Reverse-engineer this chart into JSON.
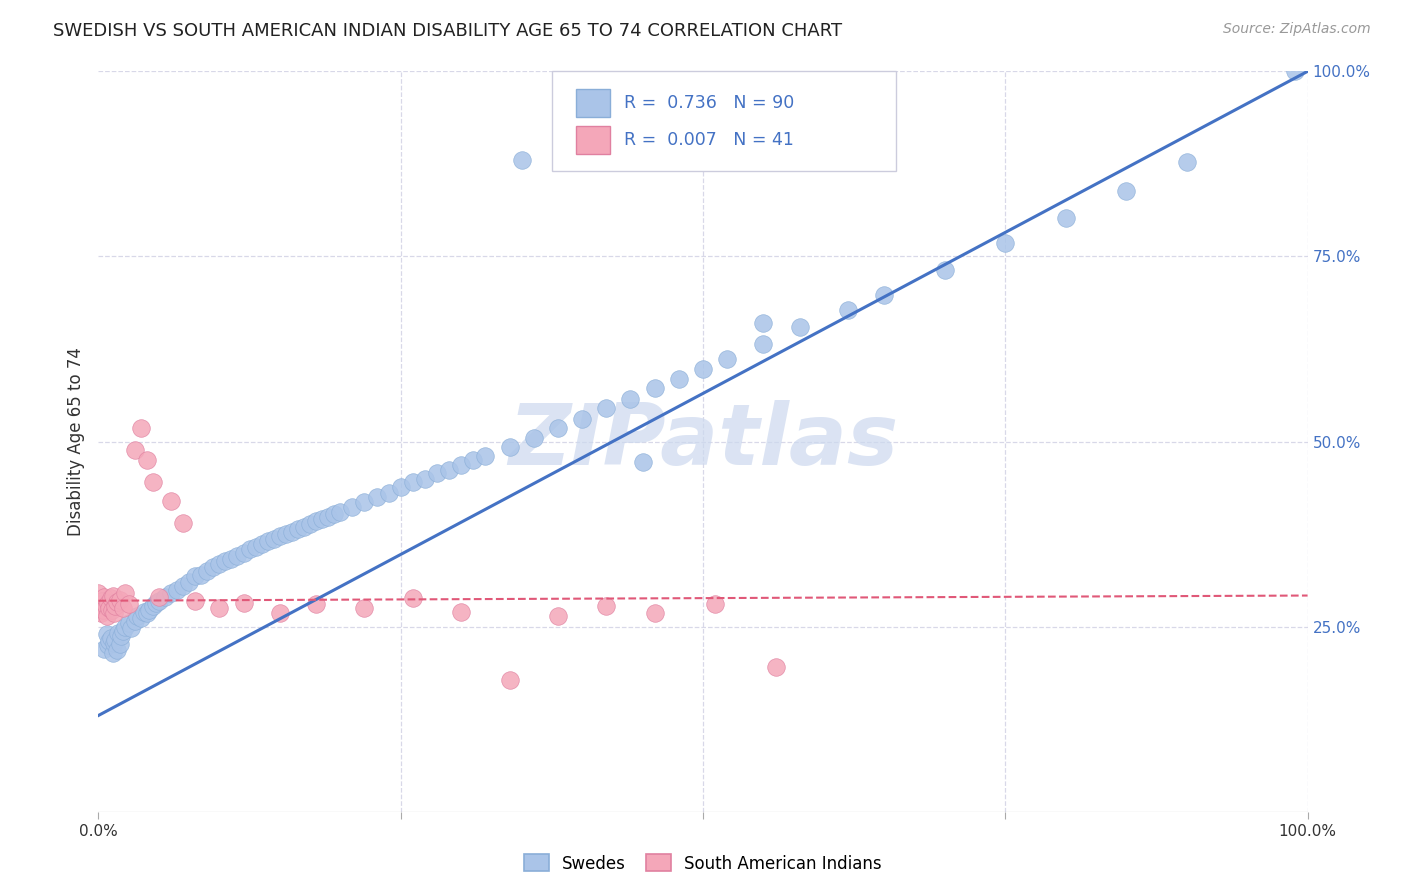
{
  "title": "SWEDISH VS SOUTH AMERICAN INDIAN DISABILITY AGE 65 TO 74 CORRELATION CHART",
  "source": "Source: ZipAtlas.com",
  "ylabel": "Disability Age 65 to 74",
  "legend_label1": "Swedes",
  "legend_label2": "South American Indians",
  "r1": "0.736",
  "n1": "90",
  "r2": "0.007",
  "n2": "41",
  "color_blue": "#aac4e8",
  "color_blue_edge": "#8aaed8",
  "color_pink": "#f4a7b9",
  "color_pink_edge": "#e080a0",
  "line_blue": "#4472c4",
  "line_pink": "#e05878",
  "text_blue": "#4472c4",
  "text_dark": "#222222",
  "background": "#ffffff",
  "grid_color": "#d8d8e8",
  "watermark_color": "#ccd8ee",
  "xlim": [
    0.0,
    1.0
  ],
  "ylim": [
    0.0,
    1.0
  ],
  "reg_blue": [
    0.0,
    0.13,
    1.0,
    1.0
  ],
  "reg_pink": [
    0.0,
    0.285,
    1.0,
    0.292
  ],
  "right_yticks": [
    0.25,
    0.5,
    0.75,
    1.0
  ],
  "right_yticklabels": [
    "25.0%",
    "50.0%",
    "75.0%",
    "100.0%"
  ],
  "blue_x": [
    0.005,
    0.007,
    0.008,
    0.009,
    0.01,
    0.012,
    0.013,
    0.014,
    0.015,
    0.016,
    0.018,
    0.019,
    0.02,
    0.022,
    0.025,
    0.027,
    0.03,
    0.032,
    0.035,
    0.038,
    0.04,
    0.042,
    0.045,
    0.048,
    0.05,
    0.055,
    0.06,
    0.065,
    0.07,
    0.075,
    0.08,
    0.085,
    0.09,
    0.095,
    0.1,
    0.105,
    0.11,
    0.115,
    0.12,
    0.125,
    0.13,
    0.135,
    0.14,
    0.145,
    0.15,
    0.155,
    0.16,
    0.165,
    0.17,
    0.175,
    0.18,
    0.185,
    0.19,
    0.195,
    0.2,
    0.21,
    0.22,
    0.23,
    0.24,
    0.25,
    0.26,
    0.27,
    0.28,
    0.29,
    0.3,
    0.31,
    0.32,
    0.34,
    0.36,
    0.38,
    0.4,
    0.42,
    0.44,
    0.46,
    0.48,
    0.5,
    0.52,
    0.55,
    0.58,
    0.62,
    0.65,
    0.7,
    0.75,
    0.8,
    0.85,
    0.9,
    0.35,
    0.45,
    0.55,
    0.99
  ],
  "blue_y": [
    0.22,
    0.24,
    0.225,
    0.23,
    0.235,
    0.215,
    0.228,
    0.232,
    0.218,
    0.242,
    0.226,
    0.238,
    0.244,
    0.25,
    0.255,
    0.248,
    0.258,
    0.265,
    0.262,
    0.27,
    0.268,
    0.272,
    0.278,
    0.282,
    0.285,
    0.29,
    0.295,
    0.3,
    0.305,
    0.31,
    0.318,
    0.32,
    0.325,
    0.33,
    0.335,
    0.338,
    0.342,
    0.345,
    0.35,
    0.355,
    0.358,
    0.362,
    0.365,
    0.368,
    0.372,
    0.375,
    0.378,
    0.382,
    0.385,
    0.388,
    0.392,
    0.395,
    0.398,
    0.402,
    0.405,
    0.412,
    0.418,
    0.425,
    0.43,
    0.438,
    0.445,
    0.45,
    0.458,
    0.462,
    0.468,
    0.475,
    0.48,
    0.492,
    0.505,
    0.518,
    0.53,
    0.545,
    0.558,
    0.572,
    0.585,
    0.598,
    0.612,
    0.632,
    0.655,
    0.678,
    0.698,
    0.732,
    0.768,
    0.802,
    0.838,
    0.878,
    0.88,
    0.472,
    0.66,
    1.0
  ],
  "pink_x": [
    0.0,
    0.001,
    0.002,
    0.003,
    0.004,
    0.005,
    0.006,
    0.007,
    0.008,
    0.009,
    0.01,
    0.011,
    0.012,
    0.013,
    0.014,
    0.015,
    0.018,
    0.02,
    0.022,
    0.025,
    0.03,
    0.035,
    0.04,
    0.045,
    0.05,
    0.06,
    0.07,
    0.08,
    0.1,
    0.12,
    0.15,
    0.18,
    0.22,
    0.26,
    0.3,
    0.34,
    0.38,
    0.42,
    0.46,
    0.51,
    0.56
  ],
  "pink_y": [
    0.295,
    0.28,
    0.268,
    0.285,
    0.272,
    0.29,
    0.278,
    0.265,
    0.282,
    0.275,
    0.288,
    0.273,
    0.292,
    0.268,
    0.278,
    0.283,
    0.286,
    0.275,
    0.295,
    0.28,
    0.488,
    0.518,
    0.475,
    0.445,
    0.29,
    0.42,
    0.39,
    0.285,
    0.275,
    0.282,
    0.268,
    0.28,
    0.275,
    0.288,
    0.27,
    0.178,
    0.265,
    0.278,
    0.268,
    0.28,
    0.195
  ]
}
